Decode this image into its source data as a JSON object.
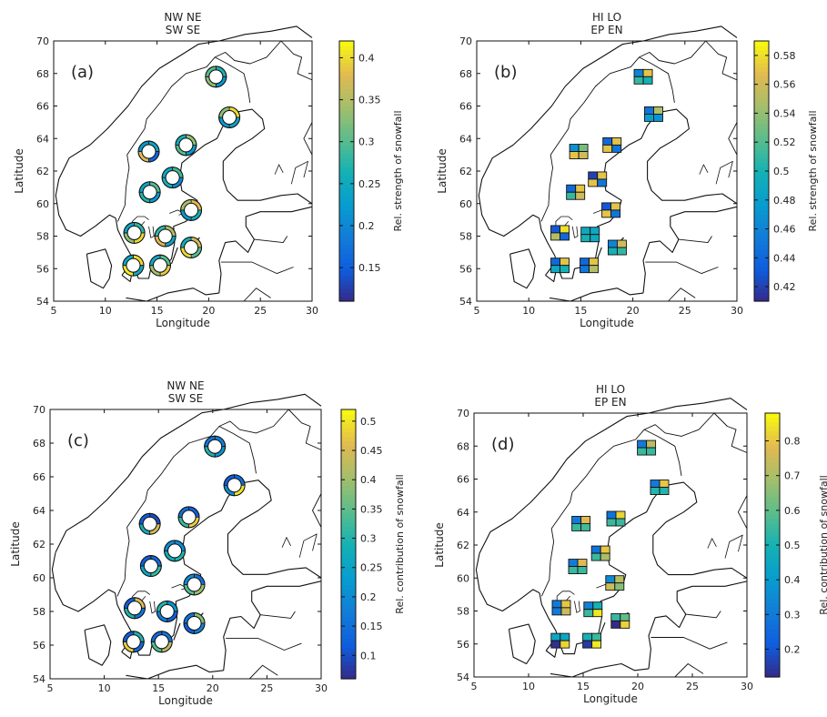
{
  "chart_data": [
    {
      "type": "map",
      "panel_label": "(a)",
      "title": [
        "NW NE",
        "SW SE"
      ],
      "xlabel": "Longitude",
      "ylabel": "Latitude",
      "xlim": [
        5,
        30
      ],
      "ylim": [
        54,
        70
      ],
      "xticks": [
        5,
        10,
        15,
        20,
        25,
        30
      ],
      "yticks": [
        54,
        56,
        58,
        60,
        62,
        64,
        66,
        68,
        70
      ],
      "marker": "ring",
      "colorbar": {
        "label": "Rel. strength of snowfall",
        "range": [
          0.11,
          0.42
        ],
        "ticks": [
          0.15,
          0.2,
          0.25,
          0.3,
          0.35,
          0.4
        ]
      },
      "sectors": [
        "NE",
        "SE",
        "SW",
        "NW"
      ],
      "stations": [
        {
          "lon": 20.7,
          "lat": 67.8,
          "values": [
            0.27,
            0.22,
            0.33,
            0.3
          ]
        },
        {
          "lon": 22.0,
          "lat": 65.3,
          "values": [
            0.4,
            0.24,
            0.22,
            0.33
          ]
        },
        {
          "lon": 14.2,
          "lat": 63.2,
          "values": [
            0.24,
            0.16,
            0.38,
            0.22
          ]
        },
        {
          "lon": 17.8,
          "lat": 63.6,
          "values": [
            0.33,
            0.22,
            0.3,
            0.26
          ]
        },
        {
          "lon": 16.5,
          "lat": 61.6,
          "values": [
            0.29,
            0.2,
            0.26,
            0.25
          ]
        },
        {
          "lon": 14.3,
          "lat": 60.7,
          "values": [
            0.3,
            0.22,
            0.27,
            0.24
          ]
        },
        {
          "lon": 18.3,
          "lat": 59.6,
          "values": [
            0.38,
            0.26,
            0.22,
            0.35
          ]
        },
        {
          "lon": 12.8,
          "lat": 58.2,
          "values": [
            0.28,
            0.4,
            0.33,
            0.24
          ]
        },
        {
          "lon": 15.8,
          "lat": 58.0,
          "values": [
            0.35,
            0.24,
            0.38,
            0.28
          ]
        },
        {
          "lon": 18.3,
          "lat": 57.3,
          "values": [
            0.37,
            0.3,
            0.4,
            0.26
          ]
        },
        {
          "lon": 12.7,
          "lat": 56.2,
          "values": [
            0.4,
            0.25,
            0.41,
            0.24
          ]
        },
        {
          "lon": 15.3,
          "lat": 56.2,
          "values": [
            0.3,
            0.39,
            0.34,
            0.25
          ]
        }
      ]
    },
    {
      "type": "map",
      "panel_label": "(b)",
      "title": [
        "HI LO",
        "EP EN"
      ],
      "xlabel": "Longitude",
      "ylabel": "Latitude",
      "xlim": [
        5,
        30
      ],
      "ylim": [
        54,
        70
      ],
      "xticks": [
        5,
        10,
        15,
        20,
        25,
        30
      ],
      "yticks": [
        54,
        56,
        58,
        60,
        62,
        64,
        66,
        68,
        70
      ],
      "marker": "square",
      "colorbar": {
        "label": "Rel. strength of snowfall",
        "range": [
          0.41,
          0.59
        ],
        "ticks": [
          0.42,
          0.44,
          0.46,
          0.48,
          0.5,
          0.52,
          0.54,
          0.56,
          0.58
        ]
      },
      "quadrants": [
        "HI",
        "LO",
        "EP",
        "EN"
      ],
      "stations": [
        {
          "lon": 21.0,
          "lat": 67.8,
          "values": [
            0.46,
            0.57,
            0.51,
            0.5
          ]
        },
        {
          "lon": 22.0,
          "lat": 65.5,
          "values": [
            0.45,
            0.55,
            0.48,
            0.47
          ]
        },
        {
          "lon": 14.8,
          "lat": 63.2,
          "values": [
            0.47,
            0.53,
            0.57,
            0.56
          ]
        },
        {
          "lon": 18.0,
          "lat": 63.6,
          "values": [
            0.44,
            0.57,
            0.57,
            0.45
          ]
        },
        {
          "lon": 16.6,
          "lat": 61.5,
          "values": [
            0.42,
            0.57,
            0.57,
            0.45
          ]
        },
        {
          "lon": 14.5,
          "lat": 60.7,
          "values": [
            0.44,
            0.57,
            0.51,
            0.56
          ]
        },
        {
          "lon": 17.9,
          "lat": 59.6,
          "values": [
            0.43,
            0.57,
            0.57,
            0.45
          ]
        },
        {
          "lon": 13.0,
          "lat": 58.2,
          "values": [
            0.43,
            0.58,
            0.55,
            0.44
          ]
        },
        {
          "lon": 15.9,
          "lat": 58.1,
          "values": [
            0.49,
            0.49,
            0.5,
            0.49
          ]
        },
        {
          "lon": 18.5,
          "lat": 57.3,
          "values": [
            0.46,
            0.56,
            0.5,
            0.51
          ]
        },
        {
          "lon": 13.0,
          "lat": 56.2,
          "values": [
            0.44,
            0.57,
            0.49,
            0.5
          ]
        },
        {
          "lon": 15.8,
          "lat": 56.2,
          "values": [
            0.44,
            0.57,
            0.45,
            0.55
          ]
        }
      ]
    },
    {
      "type": "map",
      "panel_label": "(c)",
      "title": [
        "NW NE",
        "SW SE"
      ],
      "xlabel": "Longitude",
      "ylabel": "Latitude",
      "xlim": [
        5,
        30
      ],
      "ylim": [
        54,
        70
      ],
      "xticks": [
        5,
        10,
        15,
        20,
        25,
        30
      ],
      "yticks": [
        54,
        56,
        58,
        60,
        62,
        64,
        66,
        68,
        70
      ],
      "marker": "ring",
      "colorbar": {
        "label": "Rel. contribution of snowfall",
        "range": [
          0.06,
          0.52
        ],
        "ticks": [
          0.1,
          0.15,
          0.2,
          0.25,
          0.3,
          0.35,
          0.4,
          0.45,
          0.5
        ]
      },
      "sectors": [
        "NE",
        "SE",
        "SW",
        "NW"
      ],
      "stations": [
        {
          "lon": 20.2,
          "lat": 67.8,
          "values": [
            0.18,
            0.22,
            0.3,
            0.16
          ]
        },
        {
          "lon": 22.0,
          "lat": 65.5,
          "values": [
            0.14,
            0.5,
            0.2,
            0.12
          ]
        },
        {
          "lon": 14.2,
          "lat": 63.2,
          "values": [
            0.1,
            0.45,
            0.28,
            0.12
          ]
        },
        {
          "lon": 17.8,
          "lat": 63.6,
          "values": [
            0.12,
            0.48,
            0.32,
            0.15
          ]
        },
        {
          "lon": 16.5,
          "lat": 61.6,
          "values": [
            0.2,
            0.3,
            0.28,
            0.2
          ]
        },
        {
          "lon": 14.3,
          "lat": 60.7,
          "values": [
            0.14,
            0.32,
            0.26,
            0.12
          ]
        },
        {
          "lon": 18.3,
          "lat": 59.6,
          "values": [
            0.15,
            0.4,
            0.34,
            0.2
          ]
        },
        {
          "lon": 12.8,
          "lat": 58.2,
          "values": [
            0.45,
            0.16,
            0.3,
            0.12
          ]
        },
        {
          "lon": 15.8,
          "lat": 58.0,
          "values": [
            0.22,
            0.12,
            0.18,
            0.3
          ]
        },
        {
          "lon": 18.3,
          "lat": 57.3,
          "values": [
            0.38,
            0.18,
            0.12,
            0.16
          ]
        },
        {
          "lon": 12.7,
          "lat": 56.2,
          "values": [
            0.3,
            0.14,
            0.48,
            0.12
          ]
        },
        {
          "lon": 15.3,
          "lat": 56.2,
          "values": [
            0.16,
            0.42,
            0.34,
            0.14
          ]
        }
      ]
    },
    {
      "type": "map",
      "panel_label": "(d)",
      "title": [
        "HI LO",
        "EP EN"
      ],
      "xlabel": "Longitude",
      "ylabel": "Latitude",
      "xlim": [
        5,
        30
      ],
      "ylim": [
        54,
        70
      ],
      "xticks": [
        5,
        10,
        15,
        20,
        25,
        30
      ],
      "yticks": [
        54,
        56,
        58,
        60,
        62,
        64,
        66,
        68,
        70
      ],
      "marker": "square",
      "colorbar": {
        "label": "Rel. contribution of snowfall",
        "range": [
          0.12,
          0.88
        ],
        "ticks": [
          0.2,
          0.3,
          0.4,
          0.5,
          0.6,
          0.7,
          0.8
        ]
      },
      "quadrants": [
        "HI",
        "LO",
        "EP",
        "EN"
      ],
      "stations": [
        {
          "lon": 20.8,
          "lat": 67.9,
          "values": [
            0.3,
            0.72,
            0.55,
            0.55
          ]
        },
        {
          "lon": 22.0,
          "lat": 65.5,
          "values": [
            0.3,
            0.8,
            0.52,
            0.52
          ]
        },
        {
          "lon": 14.8,
          "lat": 63.3,
          "values": [
            0.3,
            0.78,
            0.55,
            0.56
          ]
        },
        {
          "lon": 18.0,
          "lat": 63.6,
          "values": [
            0.28,
            0.82,
            0.55,
            0.55
          ]
        },
        {
          "lon": 16.6,
          "lat": 61.5,
          "values": [
            0.28,
            0.8,
            0.55,
            0.7
          ]
        },
        {
          "lon": 14.5,
          "lat": 60.7,
          "values": [
            0.3,
            0.78,
            0.55,
            0.55
          ]
        },
        {
          "lon": 17.9,
          "lat": 59.7,
          "values": [
            0.35,
            0.72,
            0.75,
            0.65
          ]
        },
        {
          "lon": 13.0,
          "lat": 58.2,
          "values": [
            0.3,
            0.8,
            0.3,
            0.75
          ]
        },
        {
          "lon": 15.9,
          "lat": 58.1,
          "values": [
            0.32,
            0.5,
            0.55,
            0.85
          ]
        },
        {
          "lon": 18.4,
          "lat": 57.4,
          "values": [
            0.55,
            0.6,
            0.12,
            0.82
          ]
        },
        {
          "lon": 12.9,
          "lat": 56.2,
          "values": [
            0.45,
            0.45,
            0.13,
            0.82
          ]
        },
        {
          "lon": 15.8,
          "lat": 56.2,
          "values": [
            0.5,
            0.55,
            0.15,
            0.85
          ]
        }
      ]
    }
  ]
}
